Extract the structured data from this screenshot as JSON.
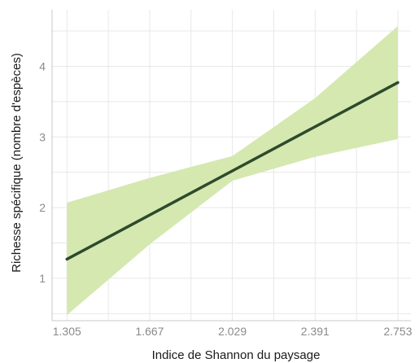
{
  "chart_data": {
    "type": "line",
    "xlabel": "Indice de Shannon du paysage",
    "ylabel": "Richesse spécifique (nombre d'espèces)",
    "x_ticks": [
      1.305,
      1.667,
      2.029,
      2.391,
      2.753
    ],
    "x_tick_labels": [
      "1.305",
      "1.667",
      "2.029",
      "2.391",
      "2.753"
    ],
    "y_ticks": [
      1,
      2,
      3,
      4
    ],
    "y_tick_labels": [
      "1",
      "2",
      "3",
      "4"
    ],
    "xlim": [
      1.24,
      2.81
    ],
    "ylim": [
      0.4,
      4.8
    ],
    "grid": true,
    "series": [
      {
        "x": [
          1.305,
          2.753
        ],
        "y": [
          1.27,
          3.77
        ],
        "color": "#2d4a2b",
        "ci_x": [
          1.305,
          1.667,
          2.029,
          2.391,
          2.753
        ],
        "ci_lower": [
          0.48,
          1.48,
          2.38,
          2.72,
          2.97
        ],
        "ci_upper": [
          2.07,
          2.42,
          2.73,
          3.55,
          4.57
        ],
        "ci_color": "#d5e8b0"
      }
    ]
  }
}
